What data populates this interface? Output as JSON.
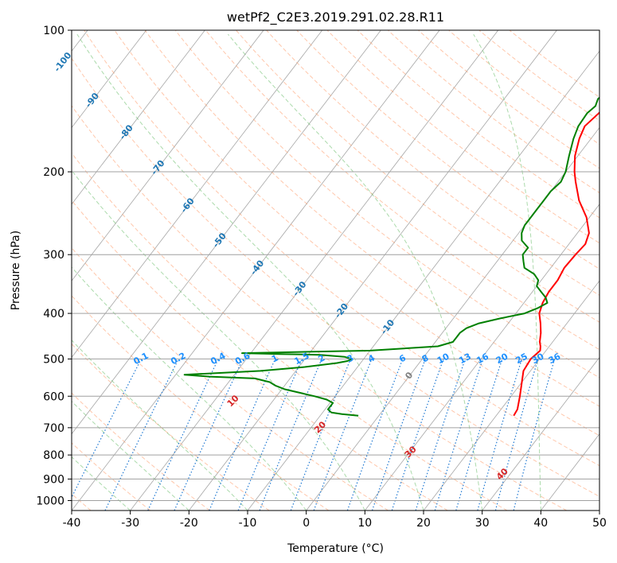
{
  "chart_data": {
    "type": "line",
    "subtype": "skew-T log-p diagram",
    "title": "wetPf2_C2E3.2019.291.02.28.R11",
    "xlabel": "Temperature (°C)",
    "ylabel": "Pressure (hPa)",
    "xlim": [
      -40,
      50
    ],
    "ylim": [
      1050,
      100
    ],
    "x_ticks": [
      -40,
      -30,
      -20,
      -10,
      0,
      10,
      20,
      30,
      40,
      50
    ],
    "y_ticks": [
      1000,
      900,
      800,
      700,
      600,
      500,
      400,
      300,
      200,
      100
    ],
    "colors": {
      "temperature": "#ff0000",
      "dewpoint": "#008000",
      "dry_adiabat": "#ff9966",
      "moist_adiabat": "#66bb66",
      "mixing_ratio": "#1e78d2",
      "isotherm": "#808080",
      "label_blue": "#1f77b4",
      "label_mr": "#1e90ff",
      "label_red": "#d62728",
      "label_grey": "#808080"
    },
    "series": [
      {
        "name": "Temperature",
        "pressure": [
          660,
          640,
          600,
          560,
          530,
          500,
          480,
          470,
          460,
          440,
          420,
          400,
          380,
          360,
          340,
          320,
          300,
          285,
          270,
          250,
          230,
          210,
          200,
          185,
          170,
          160,
          150,
          145,
          138,
          130,
          120,
          110,
          100
        ],
        "values": [
          23.0,
          22.8,
          21.5,
          20.0,
          18.8,
          18.5,
          19.0,
          18.5,
          17.8,
          16.8,
          15.5,
          14.0,
          13.2,
          12.8,
          12.8,
          12.3,
          12.5,
          12.8,
          12.0,
          9.5,
          6.0,
          3.0,
          1.5,
          -0.5,
          -2.0,
          -2.7,
          -2.0,
          -1.5,
          0.5,
          2.0,
          3.5,
          6.0,
          10.0
        ]
      },
      {
        "name": "Dewpoint",
        "pressure": [
          660,
          655,
          650,
          640,
          630,
          620,
          610,
          600,
          590,
          580,
          570,
          560,
          550,
          545,
          540,
          530,
          520,
          510,
          505,
          500,
          495,
          490,
          488,
          486,
          484,
          480,
          470,
          460,
          450,
          440,
          430,
          420,
          410,
          400,
          390,
          380,
          370,
          360,
          350,
          340,
          330,
          320,
          310,
          300,
          290,
          285,
          280,
          270,
          260,
          250,
          240,
          230,
          220,
          210,
          200,
          185,
          170,
          160,
          150,
          145,
          140,
          135,
          130,
          127,
          120,
          110,
          100
        ],
        "values": [
          -3.5,
          -6.5,
          -8.5,
          -9.5,
          -9.5,
          -9.5,
          -11.0,
          -13.5,
          -16.5,
          -19.5,
          -21.5,
          -23.0,
          -26.0,
          -34.0,
          -38.5,
          -26.0,
          -19.0,
          -14.0,
          -12.5,
          -12.0,
          -13.5,
          -18.0,
          -25.0,
          -31.5,
          -25.0,
          -10.0,
          1.0,
          3.0,
          3.0,
          3.0,
          3.5,
          5.0,
          8.0,
          11.5,
          13.0,
          14.0,
          13.0,
          11.5,
          10.0,
          9.5,
          8.0,
          5.5,
          4.5,
          3.5,
          3.5,
          2.5,
          1.5,
          0.5,
          0.0,
          0.0,
          0.0,
          0.0,
          0.0,
          0.5,
          0.0,
          -1.5,
          -3.0,
          -3.8,
          -4.0,
          -3.5,
          -4.0,
          -3.5,
          -2.5,
          -1.5,
          -1.0,
          0.5,
          2.5
        ]
      }
    ],
    "background_lines": {
      "isotherms_c": [
        -120,
        -110,
        -100,
        -90,
        -80,
        -70,
        -60,
        -50,
        -40,
        -30,
        -20,
        -10,
        0,
        10,
        20,
        30,
        40,
        50
      ],
      "dry_adiabats_c": [
        -50,
        -40,
        -30,
        -20,
        -10,
        0,
        10,
        20,
        30,
        40,
        50,
        60,
        70,
        80,
        90,
        100,
        110,
        120,
        130,
        140,
        150,
        160,
        170,
        180,
        190,
        200
      ],
      "moist_adiabats_c": [
        -30,
        -20,
        -10,
        0,
        10,
        20,
        30,
        40,
        50
      ],
      "mixing_ratios_gkg": [
        0.1,
        0.2,
        0.4,
        0.6,
        1,
        1.5,
        2,
        3,
        4,
        6,
        8,
        10,
        13,
        16,
        20,
        25,
        30,
        36
      ]
    },
    "annotations": {
      "mixing_ratio_labels": [
        "0.1",
        "0.2",
        "0.4",
        "0.6",
        "1",
        "1.5",
        "2",
        "3",
        "4",
        "6",
        "8",
        "10",
        "13",
        "16",
        "20",
        "25",
        "30",
        "36"
      ],
      "isotherm_labels": [
        "-100",
        "-90",
        "-80",
        "-70",
        "-60",
        "-50",
        "-40",
        "-30",
        "-20",
        "-10"
      ],
      "isotherm_zero_label": "0",
      "theta_labels": [
        "10",
        "20",
        "30",
        "40"
      ]
    }
  }
}
